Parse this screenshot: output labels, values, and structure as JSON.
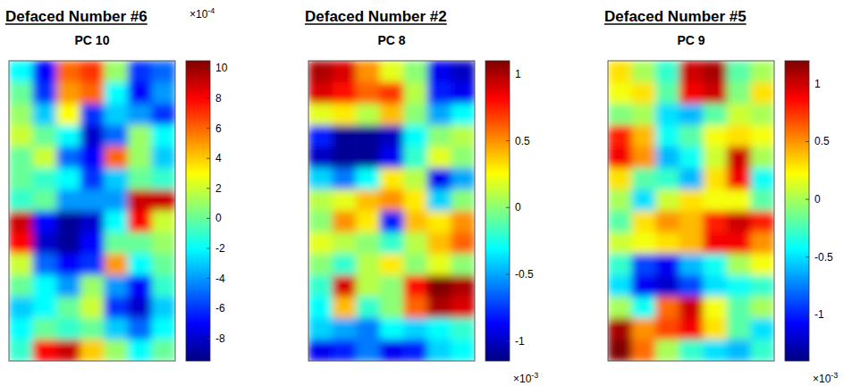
{
  "chart_data": [
    {
      "type": "heatmap",
      "title": "Defaced Number #6",
      "subtitle": "PC 10",
      "tick_labels": false,
      "cells": [
        [
          -2,
          -7,
          6,
          7,
          1,
          -6,
          -5
        ],
        [
          0,
          -6,
          5,
          6,
          -2,
          -7,
          -4
        ],
        [
          1,
          -3,
          3,
          -6,
          -3,
          -4,
          -6
        ],
        [
          2,
          0,
          -2,
          -8,
          -5,
          1,
          -2
        ],
        [
          0,
          2,
          -5,
          -7,
          6,
          1,
          -3
        ],
        [
          0,
          -1,
          -2,
          -6,
          -3,
          0,
          -1
        ],
        [
          -1,
          0,
          -4,
          -4,
          -4,
          9,
          9
        ],
        [
          9,
          -7,
          -9,
          -8,
          -2,
          8,
          2
        ],
        [
          8,
          -8,
          -9,
          -7,
          0,
          0,
          1
        ],
        [
          2,
          -5,
          -7,
          -6,
          5,
          -2,
          0
        ],
        [
          0,
          -2,
          -4,
          1,
          -4,
          -7,
          -1
        ],
        [
          -3,
          -2,
          0,
          2,
          -6,
          -8,
          -3
        ],
        [
          -2,
          0,
          -1,
          0,
          -3,
          -5,
          -2
        ],
        [
          -1,
          8,
          9,
          4,
          1,
          -2,
          0
        ]
      ],
      "colorbar": {
        "lim": [
          -9.5,
          10.5
        ],
        "ticks": [
          -8,
          -6,
          -4,
          -2,
          0,
          2,
          4,
          6,
          8,
          10
        ],
        "scale_base": "×10",
        "scale_exponent": "-4"
      }
    },
    {
      "type": "heatmap",
      "title": "Defaced Number #2",
      "subtitle": "PC 8",
      "tick_labels": false,
      "cells": [
        [
          1.0,
          0.9,
          0.5,
          0.2,
          0.0,
          -0.9,
          -1.0
        ],
        [
          0.9,
          0.8,
          0.6,
          0.7,
          0.1,
          -0.8,
          -0.9
        ],
        [
          0.2,
          0.3,
          0.1,
          0.4,
          0.0,
          -0.5,
          -0.3
        ],
        [
          -0.8,
          -1.1,
          -1.1,
          -1.0,
          -0.3,
          0.0,
          0.1
        ],
        [
          -1.0,
          -1.1,
          -1.1,
          -0.9,
          -0.2,
          0.2,
          0.0
        ],
        [
          -0.4,
          -0.6,
          -0.3,
          0.3,
          0.1,
          -0.9,
          -0.5
        ],
        [
          0.1,
          0.2,
          0.4,
          0.5,
          0.3,
          -0.4,
          0.0
        ],
        [
          0.0,
          0.5,
          0.3,
          -0.8,
          0.4,
          0.3,
          0.5
        ],
        [
          0.2,
          0.1,
          0.0,
          -0.2,
          0.1,
          0.4,
          0.6
        ],
        [
          0.0,
          -0.2,
          0.1,
          0.3,
          0.0,
          0.2,
          0.0
        ],
        [
          -0.2,
          0.9,
          0.1,
          0.0,
          0.8,
          1.1,
          1.0
        ],
        [
          -0.3,
          0.4,
          -0.2,
          0.0,
          0.6,
          1.0,
          0.9
        ],
        [
          -0.4,
          -0.5,
          -0.6,
          -0.3,
          -0.4,
          -0.3,
          -0.2
        ],
        [
          -0.9,
          -0.8,
          -0.6,
          -0.9,
          -0.8,
          -0.4,
          -0.3
        ]
      ],
      "colorbar": {
        "lim": [
          -1.15,
          1.1
        ],
        "ticks": [
          -1,
          -0.5,
          0,
          0.5,
          1
        ],
        "scale_base": "×10",
        "scale_exponent": "-3"
      }
    },
    {
      "type": "heatmap",
      "title": "Defaced Number #5",
      "subtitle": "PC 9",
      "tick_labels": false,
      "cells": [
        [
          0.3,
          0.0,
          -0.3,
          1.0,
          1.1,
          -0.2,
          0.0
        ],
        [
          0.2,
          0.3,
          -0.2,
          0.9,
          1.0,
          -0.1,
          0.3
        ],
        [
          -0.1,
          0.0,
          -0.5,
          -0.6,
          -0.2,
          0.1,
          0.0
        ],
        [
          0.8,
          0.4,
          -0.4,
          -0.2,
          0.2,
          0.3,
          0.2
        ],
        [
          0.9,
          0.5,
          -0.6,
          -0.4,
          0.1,
          1.0,
          0.0
        ],
        [
          0.3,
          -0.2,
          -0.3,
          -0.6,
          0.3,
          0.9,
          -0.4
        ],
        [
          0.0,
          -0.5,
          0.1,
          0.3,
          0.2,
          0.2,
          -0.2
        ],
        [
          -0.2,
          0.3,
          0.5,
          0.4,
          0.8,
          1.0,
          0.8
        ],
        [
          0.1,
          0.2,
          0.3,
          0.4,
          0.9,
          0.9,
          0.5
        ],
        [
          -0.3,
          -0.9,
          -1.1,
          -0.6,
          -0.4,
          0.0,
          0.2
        ],
        [
          -0.5,
          -1.1,
          -1.2,
          -0.9,
          -0.5,
          -0.4,
          -0.3
        ],
        [
          0.0,
          -0.4,
          0.6,
          1.0,
          0.2,
          -0.2,
          0.0
        ],
        [
          1.1,
          0.5,
          0.7,
          0.9,
          0.3,
          -0.2,
          -0.5
        ],
        [
          1.2,
          0.6,
          0.0,
          -0.3,
          -0.5,
          -0.6,
          -0.3
        ]
      ],
      "colorbar": {
        "lim": [
          -1.4,
          1.2
        ],
        "ticks": [
          -1,
          -0.5,
          0,
          0.5,
          1
        ],
        "scale_base": "×10",
        "scale_exponent": "-3"
      }
    }
  ]
}
